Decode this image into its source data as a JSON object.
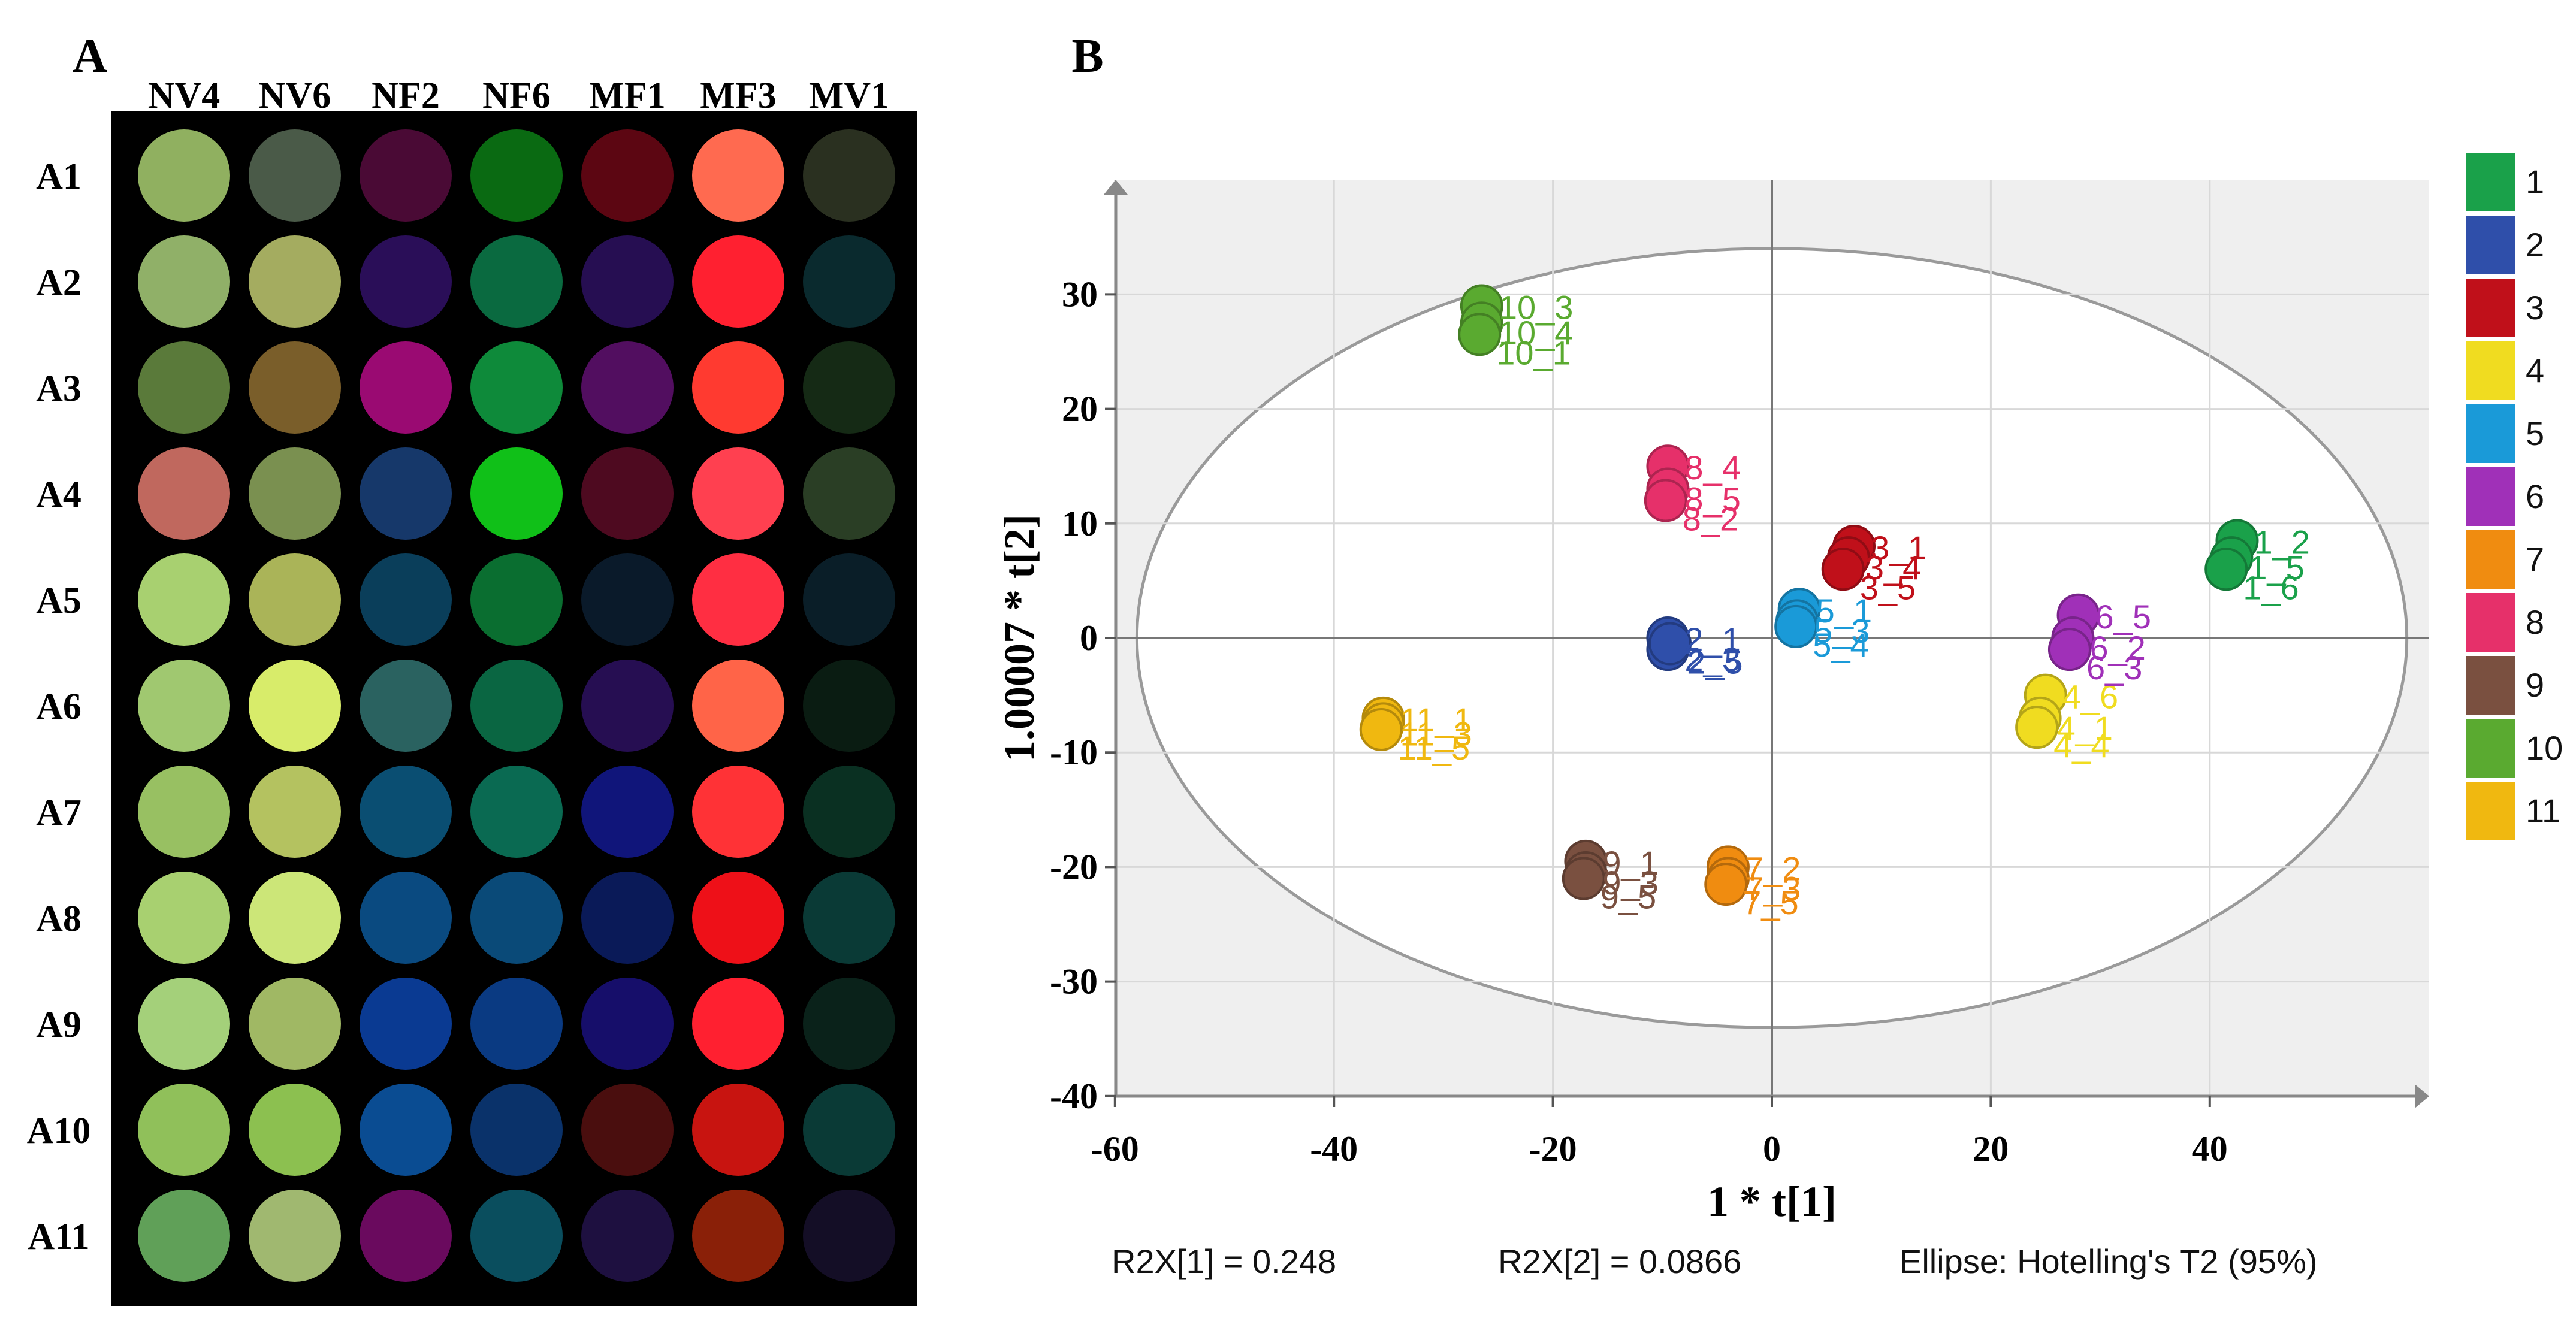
{
  "panel_a": {
    "label": "A",
    "columns": [
      "NV4",
      "NV6",
      "NF2",
      "NF6",
      "MF1",
      "MF3",
      "MV1"
    ],
    "rows": [
      {
        "label": "A1",
        "colors": [
          "#90b060",
          "#4a5a48",
          "#4a0a35",
          "#0a6a12",
          "#5c0612",
          "#ff6a50",
          "#2a3020"
        ]
      },
      {
        "label": "A2",
        "colors": [
          "#90b068",
          "#a4ac60",
          "#2a0e58",
          "#0a6a40",
          "#260e52",
          "#ff2030",
          "#0a2a2e"
        ]
      },
      {
        "label": "A3",
        "colors": [
          "#5a7a3a",
          "#7a5e2a",
          "#9a0a72",
          "#0e8a3a",
          "#520e60",
          "#ff3a30",
          "#152a15"
        ]
      },
      {
        "label": "A4",
        "colors": [
          "#c0685e",
          "#7a9050",
          "#16386a",
          "#10c018",
          "#4e0a20",
          "#ff4050",
          "#2a3e25"
        ]
      },
      {
        "label": "A5",
        "colors": [
          "#a8d070",
          "#aab458",
          "#0a3e5a",
          "#0a6e30",
          "#0a1a2a",
          "#ff2e42",
          "#0a1e28"
        ]
      },
      {
        "label": "A6",
        "colors": [
          "#a0c870",
          "#d8ec6a",
          "#2a6260",
          "#0a6642",
          "#260e52",
          "#ff6448",
          "#0a1c12"
        ]
      },
      {
        "label": "A7",
        "colors": [
          "#98c062",
          "#b4c260",
          "#0a4e72",
          "#0a6a52",
          "#10157a",
          "#ff3236",
          "#0a3022"
        ]
      },
      {
        "label": "A8",
        "colors": [
          "#a8d070",
          "#cce678",
          "#0a4a80",
          "#0a4a78",
          "#0a1a58",
          "#ee1018",
          "#0a3a36"
        ]
      },
      {
        "label": "A9",
        "colors": [
          "#a4d07a",
          "#a0b864",
          "#0a3a92",
          "#0a3a82",
          "#160e6a",
          "#ff2030",
          "#0a221a"
        ]
      },
      {
        "label": "A10",
        "colors": [
          "#90c05a",
          "#8cc050",
          "#0a4c92",
          "#0a326a",
          "#4a0e0e",
          "#c81410",
          "#0a3a36"
        ]
      },
      {
        "label": "A11",
        "colors": [
          "#60a058",
          "#a0b870",
          "#6a0a5e",
          "#0a4e5e",
          "#1e1040",
          "#8a2008",
          "#140e26"
        ]
      }
    ]
  },
  "panel_b": {
    "label": "B",
    "footer": {
      "r2x1": "R2X[1] = 0.248",
      "r2x2": "R2X[2] = 0.0866",
      "ellipse": "Ellipse: Hotelling's T2 (95%)"
    }
  },
  "chart_data": {
    "type": "scatter",
    "title": "",
    "xlabel": "1 * t[1]",
    "ylabel": "1.00007 * t[2]",
    "xlim": [
      -60,
      60
    ],
    "ylim": [
      -40,
      40
    ],
    "xticks": [
      -60,
      -40,
      -20,
      0,
      20,
      40
    ],
    "yticks": [
      -40,
      -30,
      -20,
      -10,
      0,
      10,
      20,
      30
    ],
    "grid": true,
    "legend_position": "right",
    "ellipse": {
      "label": "Hotelling's T2 (95%)",
      "cx": 0,
      "cy": 0,
      "rx": 58,
      "ry": 34
    },
    "series": [
      {
        "name": "1",
        "color": "#1aa14a",
        "points": [
          {
            "x": 42.5,
            "y": 8.5,
            "label": "1_2"
          },
          {
            "x": 42,
            "y": 7,
            "label": "1_5"
          },
          {
            "x": 41.5,
            "y": 6,
            "label": "1_6"
          }
        ]
      },
      {
        "name": "2",
        "color": "#2f4faa",
        "points": [
          {
            "x": -9.5,
            "y": 0,
            "label": "2_1"
          },
          {
            "x": -9.5,
            "y": -1,
            "label": "2_3"
          },
          {
            "x": -9.3,
            "y": -0.5,
            "label": "2_5"
          }
        ]
      },
      {
        "name": "3",
        "color": "#c0101a",
        "points": [
          {
            "x": 7.5,
            "y": 8,
            "label": "3_1"
          },
          {
            "x": 7,
            "y": 7,
            "label": "3_4"
          },
          {
            "x": 6.5,
            "y": 6,
            "label": "3_5"
          }
        ]
      },
      {
        "name": "4",
        "color": "#f0dc20",
        "points": [
          {
            "x": 25,
            "y": -5,
            "label": "4_6"
          },
          {
            "x": 24.5,
            "y": -7,
            "label": "4_1"
          },
          {
            "x": 24.2,
            "y": -7.8,
            "label": "4_4"
          }
        ]
      },
      {
        "name": "5",
        "color": "#1a9ad8",
        "points": [
          {
            "x": 2.5,
            "y": 2.5,
            "label": "5_1"
          },
          {
            "x": 2.3,
            "y": 1.5,
            "label": "5_3"
          },
          {
            "x": 2.2,
            "y": 1,
            "label": "5_4"
          }
        ]
      },
      {
        "name": "6",
        "color": "#a030b8",
        "points": [
          {
            "x": 28,
            "y": 2,
            "label": "6_5"
          },
          {
            "x": 27.5,
            "y": 0,
            "label": "6_2"
          },
          {
            "x": 27.2,
            "y": -1,
            "label": "6_3"
          }
        ]
      },
      {
        "name": "7",
        "color": "#f08c10",
        "points": [
          {
            "x": -4,
            "y": -20,
            "label": "7_2"
          },
          {
            "x": -4,
            "y": -21,
            "label": "7_3"
          },
          {
            "x": -4.2,
            "y": -21.5,
            "label": "7_5"
          }
        ]
      },
      {
        "name": "8",
        "color": "#e6306a",
        "points": [
          {
            "x": -9.5,
            "y": 15,
            "label": "8_4"
          },
          {
            "x": -9.5,
            "y": 13,
            "label": "8_5"
          },
          {
            "x": -9.7,
            "y": 12,
            "label": "8_2"
          }
        ]
      },
      {
        "name": "9",
        "color": "#7a5040",
        "points": [
          {
            "x": -17,
            "y": -19.5,
            "label": "9_1"
          },
          {
            "x": -17,
            "y": -20.5,
            "label": "9_3"
          },
          {
            "x": -17.2,
            "y": -21,
            "label": "9_5"
          }
        ]
      },
      {
        "name": "10",
        "color": "#5aaa30",
        "points": [
          {
            "x": -26.5,
            "y": 29,
            "label": "10_3"
          },
          {
            "x": -26.5,
            "y": 27.5,
            "label": "10_4"
          },
          {
            "x": -26.7,
            "y": 26.5,
            "label": "10_1"
          }
        ]
      },
      {
        "name": "11",
        "color": "#f0b810",
        "points": [
          {
            "x": -35.5,
            "y": -7,
            "label": "11_1"
          },
          {
            "x": -35.5,
            "y": -7.5,
            "label": "11_3"
          },
          {
            "x": -35.7,
            "y": -8,
            "label": "11_5"
          }
        ]
      }
    ]
  }
}
